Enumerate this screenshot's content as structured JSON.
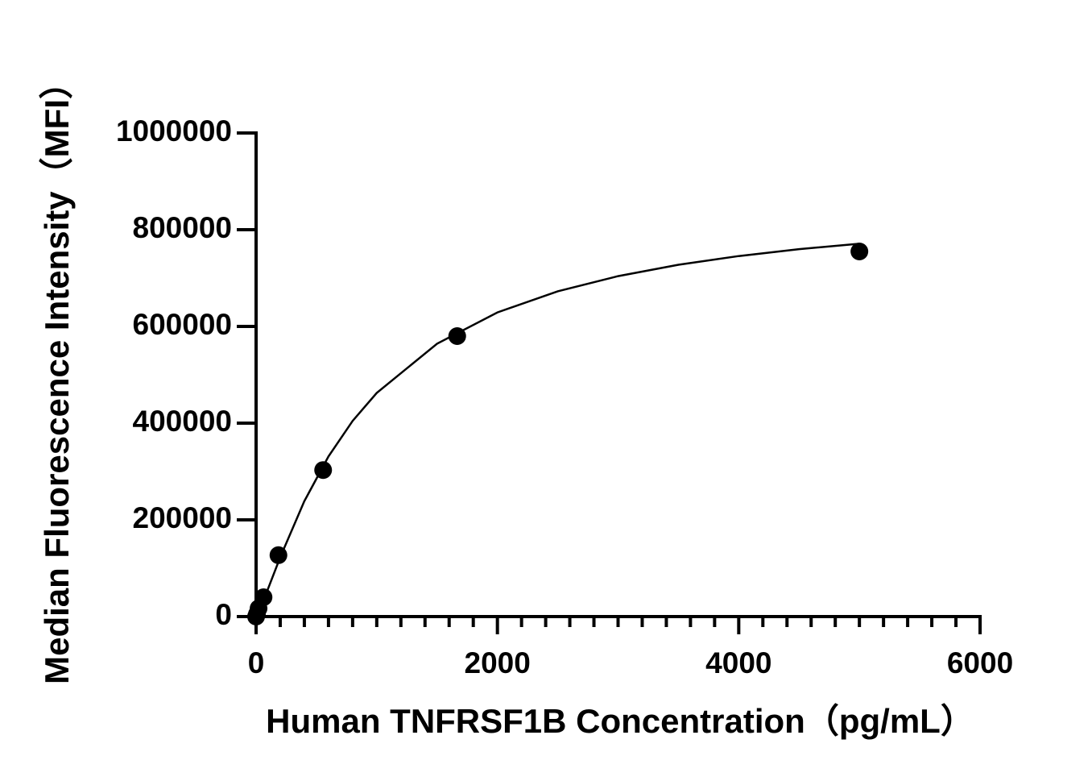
{
  "chart_data": {
    "type": "scatter",
    "xlabel": "Human TNFRSF1B Concentration（pg/mL）",
    "ylabel": "Median Fluorescence Intensity（MFI）",
    "x": [
      0,
      6.9,
      20.6,
      61.7,
      185.2,
      555.6,
      1666.7,
      5000
    ],
    "values": [
      0,
      5000,
      17000,
      40000,
      127000,
      303000,
      580000,
      755000
    ],
    "color": "#000000",
    "curve": {
      "x": [
        0,
        50,
        100,
        200,
        400,
        600,
        800,
        1000,
        1500,
        2000,
        2500,
        3000,
        3500,
        4000,
        4500,
        5000
      ],
      "values": [
        0,
        26300,
        58100,
        122900,
        238600,
        331200,
        404600,
        462500,
        564300,
        629000,
        672600,
        704000,
        727500,
        745500,
        759900,
        771000
      ]
    },
    "xlim": [
      0,
      6000
    ],
    "xticks": [
      0,
      2000,
      4000,
      6000
    ],
    "xminorticks": [
      200,
      400,
      600,
      800,
      1000,
      1200,
      1400,
      1600,
      1800,
      2200,
      2400,
      2600,
      2800,
      3000,
      3200,
      3400,
      3600,
      3800,
      4200,
      4400,
      4600,
      4800,
      5000,
      5200,
      5400,
      5600,
      5800
    ],
    "ylim": [
      0,
      1000000
    ],
    "yticks": [
      0,
      200000,
      400000,
      600000,
      800000,
      1000000
    ]
  }
}
